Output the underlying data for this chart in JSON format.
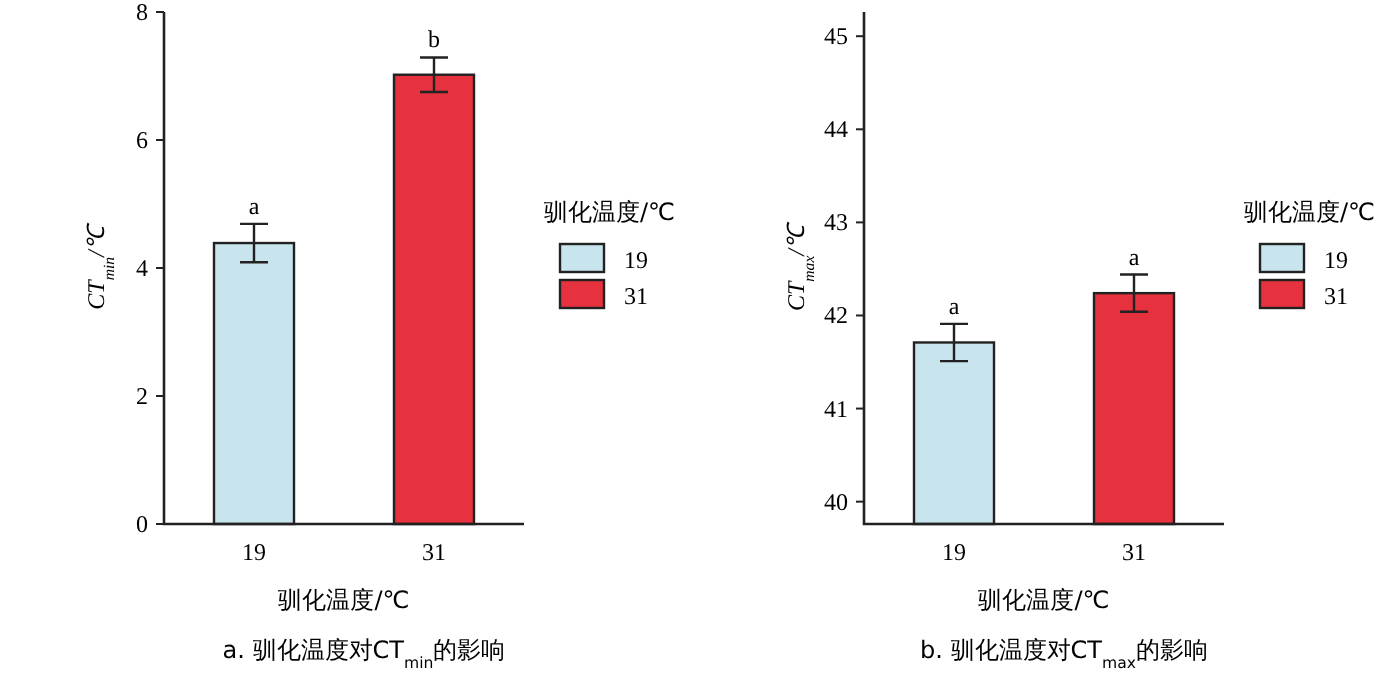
{
  "chart_data": [
    {
      "type": "bar",
      "title": "a. 驯化温度对CT$_{min}$的影响",
      "xlabel": "驯化温度/℃",
      "ylabel": "CT$_{min}$/℃",
      "legend_title": "驯化温度/℃",
      "legend": "right",
      "categories": [
        "19",
        "31"
      ],
      "ylim": [
        0,
        8
      ],
      "yticks": [
        0,
        2,
        4,
        6,
        8
      ],
      "series": [
        {
          "name": "19",
          "color": "#c8e4ec",
          "values": [
            4.39,
            null
          ],
          "errors": [
            0.3,
            null
          ]
        },
        {
          "name": "31",
          "color": "#e5323e",
          "values": [
            null,
            7.02
          ],
          "errors": [
            null,
            0.27
          ]
        }
      ],
      "annotations": [
        {
          "text": "a",
          "x": "19",
          "y": 4.69
        },
        {
          "text": "b",
          "x": "31",
          "y": 7.29
        }
      ]
    },
    {
      "type": "bar",
      "title": "b. 驯化温度对CT$_{max}$的影响",
      "xlabel": "驯化温度/℃",
      "ylabel": "CT$_{max}$/℃",
      "legend_title": "驯化温度/℃",
      "legend": "right",
      "categories": [
        "19",
        "31"
      ],
      "ylim": [
        39.76,
        45.26
      ],
      "yticks": [
        40,
        41,
        42,
        43,
        44,
        45
      ],
      "series": [
        {
          "name": "19",
          "color": "#c8e4ec",
          "values": [
            41.71,
            null
          ],
          "errors": [
            0.2,
            null
          ]
        },
        {
          "name": "31",
          "color": "#e5323e",
          "values": [
            null,
            42.24
          ],
          "errors": [
            null,
            0.2
          ]
        }
      ],
      "annotations": [
        {
          "text": "a",
          "x": "19",
          "y": 41.91
        },
        {
          "text": "a",
          "x": "31",
          "y": 42.44
        }
      ]
    }
  ]
}
